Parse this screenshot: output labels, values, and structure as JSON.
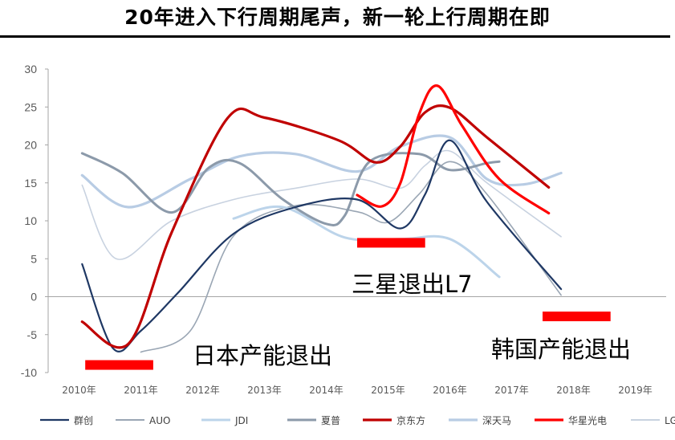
{
  "title": "20年进入下行周期尾声，新一轮上行周期在即",
  "chart_data": {
    "type": "line",
    "title": "20年进入下行周期尾声，新一轮上行周期在即",
    "xlabel": "",
    "ylabel": "",
    "ylim": [
      -10,
      30
    ],
    "yticks": [
      "30",
      "25",
      "20",
      "15",
      "10",
      "5",
      "0",
      "-5",
      "-10"
    ],
    "categories": [
      "2010年",
      "2011年",
      "2012年",
      "2013年",
      "2014年",
      "2015年",
      "2016年",
      "2017年",
      "2018年",
      "2019年"
    ],
    "legend_position": "bottom",
    "grid": false,
    "series": [
      {
        "name": "群创",
        "color": "#1f3864",
        "width": 2.2,
        "points": [
          [
            2010.05,
            4.3
          ],
          [
            2010.55,
            -6.8
          ],
          [
            2011.0,
            -4.5
          ],
          [
            2011.6,
            0.5
          ],
          [
            2012.5,
            8.3
          ],
          [
            2013.5,
            11.8
          ],
          [
            2014.5,
            12.8
          ],
          [
            2015.2,
            9.0
          ],
          [
            2015.6,
            13.5
          ],
          [
            2016.0,
            20.6
          ],
          [
            2016.6,
            12.5
          ],
          [
            2017.8,
            1.0
          ]
        ]
      },
      {
        "name": "AUO",
        "color": "#9aa6b4",
        "width": 1.6,
        "points": [
          [
            2011.0,
            -7.3
          ],
          [
            2011.8,
            -4.5
          ],
          [
            2012.5,
            8.0
          ],
          [
            2013.5,
            12.0
          ],
          [
            2014.5,
            11.2
          ],
          [
            2015.0,
            9.8
          ],
          [
            2015.5,
            13.5
          ],
          [
            2016.0,
            17.8
          ],
          [
            2016.6,
            13.5
          ],
          [
            2017.8,
            0.2
          ]
        ]
      },
      {
        "name": "JDI",
        "color": "#bcd4ea",
        "width": 3,
        "points": [
          [
            2012.5,
            10.3
          ],
          [
            2013.3,
            11.8
          ],
          [
            2014.3,
            7.8
          ],
          [
            2015.2,
            7.6
          ],
          [
            2016.0,
            7.6
          ],
          [
            2016.8,
            2.6
          ]
        ]
      },
      {
        "name": "夏普",
        "color": "#8c9aaa",
        "width": 3,
        "points": [
          [
            2010.05,
            18.9
          ],
          [
            2010.7,
            16.3
          ],
          [
            2011.5,
            11.1
          ],
          [
            2012.1,
            17.0
          ],
          [
            2012.6,
            17.6
          ],
          [
            2013.3,
            12.8
          ],
          [
            2014.0,
            9.6
          ],
          [
            2014.3,
            10.7
          ],
          [
            2014.7,
            17.8
          ],
          [
            2015.5,
            18.8
          ],
          [
            2016.0,
            16.7
          ],
          [
            2016.6,
            17.6
          ],
          [
            2016.8,
            17.8
          ]
        ]
      },
      {
        "name": "京东方",
        "color": "#c00000",
        "width": 3.2,
        "points": [
          [
            2010.05,
            -3.3
          ],
          [
            2010.8,
            -6.2
          ],
          [
            2011.5,
            8.5
          ],
          [
            2012.4,
            23.5
          ],
          [
            2013.0,
            23.6
          ],
          [
            2014.2,
            20.6
          ],
          [
            2014.8,
            17.7
          ],
          [
            2015.2,
            19.8
          ],
          [
            2015.6,
            24.3
          ],
          [
            2016.0,
            24.9
          ],
          [
            2016.6,
            21.0
          ],
          [
            2017.6,
            14.4
          ]
        ]
      },
      {
        "name": "深天马",
        "color": "#b8cce4",
        "width": 3.2,
        "points": [
          [
            2010.05,
            16.0
          ],
          [
            2010.8,
            11.8
          ],
          [
            2011.8,
            15.5
          ],
          [
            2012.6,
            18.5
          ],
          [
            2013.5,
            18.8
          ],
          [
            2014.5,
            16.5
          ],
          [
            2015.2,
            19.8
          ],
          [
            2016.0,
            21.0
          ],
          [
            2016.6,
            15.5
          ],
          [
            2017.2,
            14.8
          ],
          [
            2017.8,
            16.3
          ]
        ]
      },
      {
        "name": "华星光电",
        "color": "#ff0000",
        "width": 3.2,
        "points": [
          [
            2014.5,
            13.4
          ],
          [
            2014.9,
            11.9
          ],
          [
            2015.2,
            15.0
          ],
          [
            2015.5,
            24.0
          ],
          [
            2015.8,
            27.8
          ],
          [
            2016.2,
            22.5
          ],
          [
            2016.8,
            15.5
          ],
          [
            2017.6,
            11.0
          ]
        ]
      },
      {
        "name": "LGD",
        "color": "#c8d2e0",
        "width": 1.6,
        "points": [
          [
            2010.05,
            14.7
          ],
          [
            2010.6,
            5.0
          ],
          [
            2011.5,
            10.0
          ],
          [
            2012.5,
            12.8
          ],
          [
            2013.5,
            14.3
          ],
          [
            2014.5,
            15.5
          ],
          [
            2015.2,
            14.3
          ],
          [
            2015.6,
            17.3
          ],
          [
            2016.0,
            19.2
          ],
          [
            2016.6,
            15.0
          ],
          [
            2017.8,
            7.9
          ]
        ]
      }
    ],
    "annotations": [
      {
        "text": "日本产能退出",
        "bar_x": [
          2010.1,
          2011.2
        ],
        "bar_y": -9.0
      },
      {
        "text": "三星退出L7",
        "bar_x": [
          2014.5,
          2015.6
        ],
        "bar_y": 7.1
      },
      {
        "text": "韩国产能退出",
        "bar_x": [
          2017.5,
          2018.6
        ],
        "bar_y": -2.6
      }
    ],
    "annotation_color": "#ff0000"
  }
}
